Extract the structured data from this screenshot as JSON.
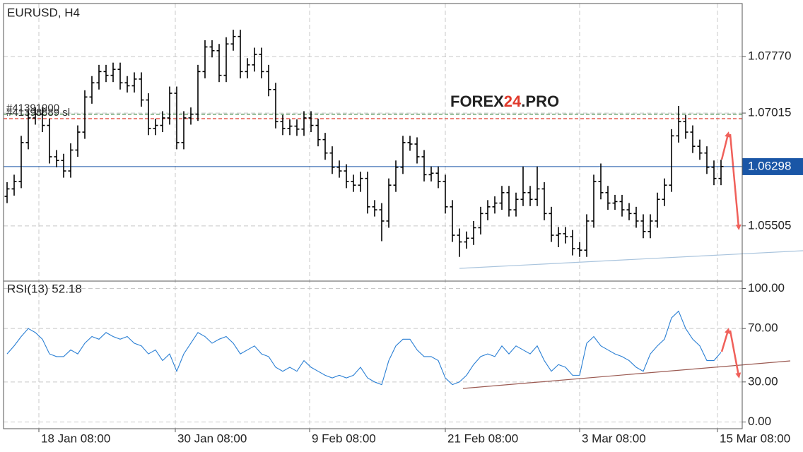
{
  "chart_data": [
    {
      "type": "ohlc",
      "title": "EURUSD, H4",
      "color": "#000000",
      "open": [
        1.059,
        1.06,
        1.061,
        1.0662,
        1.0695,
        1.07,
        1.0685,
        1.0643,
        1.0638,
        1.0624,
        1.0652,
        1.0676,
        1.0723,
        1.0742,
        1.0757,
        1.0752,
        1.076,
        1.0742,
        1.0738,
        1.0747,
        1.0719,
        1.0681,
        1.0685,
        1.0695,
        1.0728,
        1.0662,
        1.0695,
        1.07,
        1.0757,
        1.079,
        1.0785,
        1.0752,
        1.0794,
        1.0804,
        1.0757,
        1.0766,
        1.078,
        1.0757,
        1.0733,
        1.069,
        1.0681,
        1.0684,
        1.068,
        1.0695,
        1.0685,
        1.0666,
        1.0648,
        1.0629,
        1.0624,
        1.061,
        1.0605,
        1.0614,
        1.0576,
        1.0572,
        1.0557,
        1.0605,
        1.0629,
        1.0662,
        1.066,
        1.0643,
        1.0619,
        1.0621,
        1.061,
        1.0576,
        1.0538,
        1.0529,
        1.0534,
        1.0548,
        1.0567,
        1.0576,
        1.0581,
        1.0595,
        1.0572,
        1.0586,
        1.0595,
        1.0586,
        1.06,
        1.0567,
        1.0538,
        1.054,
        1.0536,
        1.052,
        1.0518,
        1.0557,
        1.061,
        1.0595,
        1.0581,
        1.0583,
        1.0572,
        1.0567,
        1.0557,
        1.0543,
        1.0557,
        1.0586,
        1.0605,
        1.0671,
        1.069,
        1.0676,
        1.0657,
        1.0648,
        1.0629,
        1.0614
      ],
      "high": [
        1.0609,
        1.0619,
        1.0671,
        1.0704,
        1.0709,
        1.0709,
        1.0694,
        1.0652,
        1.0647,
        1.0661,
        1.0685,
        1.0732,
        1.0751,
        1.0766,
        1.0766,
        1.0769,
        1.0769,
        1.0751,
        1.0756,
        1.0756,
        1.0728,
        1.0694,
        1.0704,
        1.0737,
        1.0737,
        1.0704,
        1.0709,
        1.0766,
        1.0799,
        1.0799,
        1.0794,
        1.0803,
        1.0813,
        1.0813,
        1.0775,
        1.0789,
        1.0789,
        1.0766,
        1.0742,
        1.0699,
        1.0693,
        1.0693,
        1.0704,
        1.0704,
        1.0694,
        1.0675,
        1.0657,
        1.0638,
        1.0633,
        1.0619,
        1.0623,
        1.0623,
        1.0585,
        1.0581,
        1.0614,
        1.0638,
        1.0671,
        1.0671,
        1.0669,
        1.0652,
        1.063,
        1.063,
        1.0619,
        1.0585,
        1.0547,
        1.0543,
        1.0557,
        1.0576,
        1.0585,
        1.059,
        1.0604,
        1.0604,
        1.0595,
        1.063,
        1.0604,
        1.063,
        1.0609,
        1.0576,
        1.0549,
        1.0549,
        1.0545,
        1.0529,
        1.0566,
        1.0619,
        1.0634,
        1.0604,
        1.0592,
        1.0592,
        1.0581,
        1.0576,
        1.0566,
        1.0566,
        1.0595,
        1.0614,
        1.068,
        1.0711,
        1.0699,
        1.0685,
        1.0666,
        1.0657,
        1.0638,
        1.0639
      ],
      "low": [
        1.0581,
        1.0591,
        1.0601,
        1.0653,
        1.0686,
        1.0676,
        1.0634,
        1.0629,
        1.0615,
        1.0615,
        1.0643,
        1.0667,
        1.0714,
        1.0733,
        1.0743,
        1.0743,
        1.0733,
        1.0729,
        1.0729,
        1.071,
        1.0672,
        1.0672,
        1.0676,
        1.0686,
        1.0653,
        1.0653,
        1.0686,
        1.0691,
        1.0748,
        1.0776,
        1.0743,
        1.0743,
        1.0785,
        1.0748,
        1.0748,
        1.0757,
        1.0748,
        1.0724,
        1.0681,
        1.0672,
        1.0672,
        1.0671,
        1.0671,
        1.0676,
        1.0657,
        1.0639,
        1.062,
        1.0615,
        1.0601,
        1.0596,
        1.0596,
        1.0567,
        1.0563,
        1.053,
        1.0548,
        1.0596,
        1.062,
        1.0651,
        1.0634,
        1.061,
        1.061,
        1.0601,
        1.0567,
        1.0529,
        1.0509,
        1.052,
        1.0525,
        1.0539,
        1.0558,
        1.0567,
        1.0572,
        1.0563,
        1.0563,
        1.0577,
        1.0577,
        1.0577,
        1.0558,
        1.0529,
        1.0522,
        1.0527,
        1.0511,
        1.0509,
        1.0509,
        1.0548,
        1.0586,
        1.0572,
        1.0572,
        1.0563,
        1.0558,
        1.0548,
        1.0534,
        1.0534,
        1.0548,
        1.0577,
        1.0596,
        1.0662,
        1.0667,
        1.0648,
        1.0639,
        1.062,
        1.0605,
        1.0605
      ],
      "close": [
        1.06,
        1.061,
        1.0662,
        1.0695,
        1.07,
        1.0685,
        1.0643,
        1.0638,
        1.0624,
        1.0652,
        1.0676,
        1.0723,
        1.0742,
        1.0757,
        1.0752,
        1.076,
        1.0742,
        1.0738,
        1.0747,
        1.0719,
        1.0681,
        1.0685,
        1.0695,
        1.0728,
        1.0662,
        1.0695,
        1.07,
        1.0757,
        1.079,
        1.0785,
        1.0752,
        1.0794,
        1.0804,
        1.0757,
        1.0766,
        1.078,
        1.0757,
        1.0733,
        1.069,
        1.0681,
        1.0684,
        1.068,
        1.0695,
        1.0685,
        1.0666,
        1.0648,
        1.0629,
        1.0624,
        1.061,
        1.0605,
        1.0614,
        1.0576,
        1.0572,
        1.0557,
        1.0605,
        1.0629,
        1.0662,
        1.066,
        1.0643,
        1.0619,
        1.0621,
        1.061,
        1.0576,
        1.0538,
        1.0529,
        1.0534,
        1.0548,
        1.0567,
        1.0576,
        1.0581,
        1.0595,
        1.0572,
        1.0586,
        1.0595,
        1.0586,
        1.06,
        1.0567,
        1.0538,
        1.054,
        1.0536,
        1.052,
        1.0518,
        1.0557,
        1.061,
        1.0595,
        1.0581,
        1.0583,
        1.0572,
        1.0567,
        1.0557,
        1.0543,
        1.0557,
        1.0586,
        1.0605,
        1.0671,
        1.069,
        1.0676,
        1.0657,
        1.0648,
        1.0629,
        1.0614,
        1.063
      ],
      "xlim": [
        -0.5,
        104
      ],
      "ylim": [
        1.04766,
        1.08481
      ],
      "yticks": [
        {
          "value": 1.0777,
          "label": "1.07770"
        },
        1.07015,
        1.05505
      ],
      "grid": true,
      "current_price": {
        "value": 1.06298,
        "color": "#1a56a6"
      },
      "order_lines": [
        {
          "label": "#41391900",
          "value": 1.07,
          "color": "#2e7d32"
        },
        {
          "label": "#41398889 sl",
          "value": 1.0694,
          "color": "#e0392b"
        }
      ],
      "watermark": [
        "FOREX",
        "24",
        ".PRO"
      ]
    },
    {
      "type": "line",
      "title": "RSI(13) 52.18",
      "color": "#2a7fd4",
      "values": [
        51,
        57,
        64,
        70,
        67,
        62,
        51,
        49,
        49,
        54,
        51,
        59,
        64,
        62,
        67,
        64,
        62,
        64,
        59,
        57,
        51,
        54,
        46,
        51,
        38,
        51,
        59,
        67,
        64,
        59,
        62,
        64,
        59,
        51,
        54,
        57,
        51,
        49,
        41,
        38,
        41,
        38,
        46,
        41,
        38,
        35,
        33,
        35,
        33,
        35,
        41,
        33,
        30,
        28,
        46,
        57,
        62,
        62,
        54,
        49,
        49,
        46,
        33,
        28,
        30,
        35,
        43,
        49,
        51,
        49,
        57,
        51,
        57,
        54,
        51,
        57,
        46,
        38,
        43,
        41,
        35,
        35,
        59,
        64,
        57,
        54,
        51,
        49,
        46,
        41,
        38,
        51,
        57,
        62,
        78,
        83,
        70,
        62,
        57,
        46,
        46,
        52.18
      ],
      "xlim": [
        -0.5,
        104
      ],
      "ylim": [
        -5,
        105
      ],
      "yticks": [
        {
          "value": 100,
          "label": "100.00"
        },
        {
          "value": 70,
          "label": "70.00"
        },
        {
          "value": 30,
          "label": "30.00"
        },
        {
          "value": 0,
          "label": "0.00"
        }
      ],
      "xticks": [
        {
          "value": 4.5,
          "label": "18 Jan 08:00"
        },
        {
          "value": 23.8,
          "label": "30 Jan 08:00"
        },
        {
          "value": 42.8,
          "label": "9 Feb 08:00"
        },
        {
          "value": 62,
          "label": "21 Feb 08:00"
        },
        {
          "value": 81,
          "label": "3 Mar 08:00"
        },
        {
          "value": 100.5,
          "label": "15 Mar 08:00"
        }
      ],
      "grid": true
    }
  ]
}
